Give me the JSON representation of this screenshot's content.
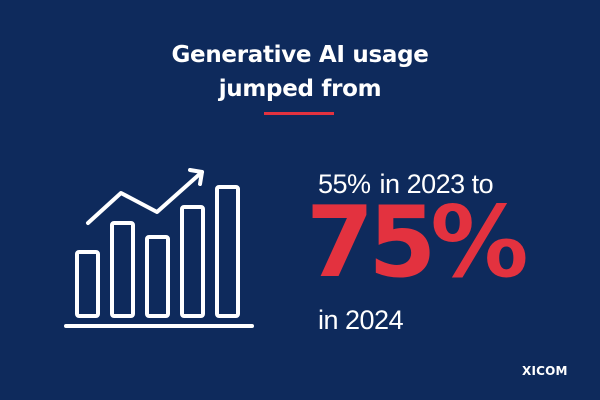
{
  "headline": {
    "line1": "Generative AI usage",
    "line2": "jumped from"
  },
  "stat": {
    "from_value": "55%",
    "from_year_text": "in 2023 to",
    "to_value": "75%",
    "to_year_text": "in 2024"
  },
  "brand": {
    "logo_text": "XICOM"
  },
  "icon": "bar-chart-growth-icon",
  "colors": {
    "background": "#0e2a5c",
    "accent": "#e3323f",
    "text": "#ffffff"
  }
}
